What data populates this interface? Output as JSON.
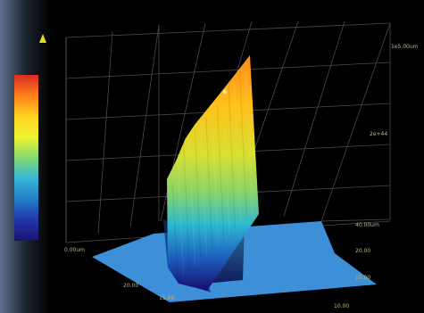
{
  "chart_data": {
    "type": "surface",
    "title": "",
    "xlabel": "",
    "ylabel": "",
    "zlabel": "",
    "legend": "left",
    "grid": true,
    "colorbar": {
      "min_label": "0.00um",
      "colors": [
        "#d8221e",
        "#ff7a10",
        "#ffd21a",
        "#f2f22a",
        "#7fd86a",
        "#2fb4d8",
        "#1a78c6",
        "#1b2ea8",
        "#100a6a"
      ]
    },
    "z_tick_labels": [
      "1e5.00um",
      "2e+44",
      "40.00um"
    ],
    "x_tick_labels": [
      "20.00",
      "15.00"
    ],
    "y_tick_labels": [
      "20.00",
      "10.00",
      "10.00"
    ],
    "floor_color": "#3d8fd8",
    "ridge": {
      "ridge_profile": [
        0.66,
        0.74,
        0.84,
        0.88,
        0.9,
        0.92,
        0.94,
        0.96,
        0.98,
        1.0
      ]
    }
  }
}
